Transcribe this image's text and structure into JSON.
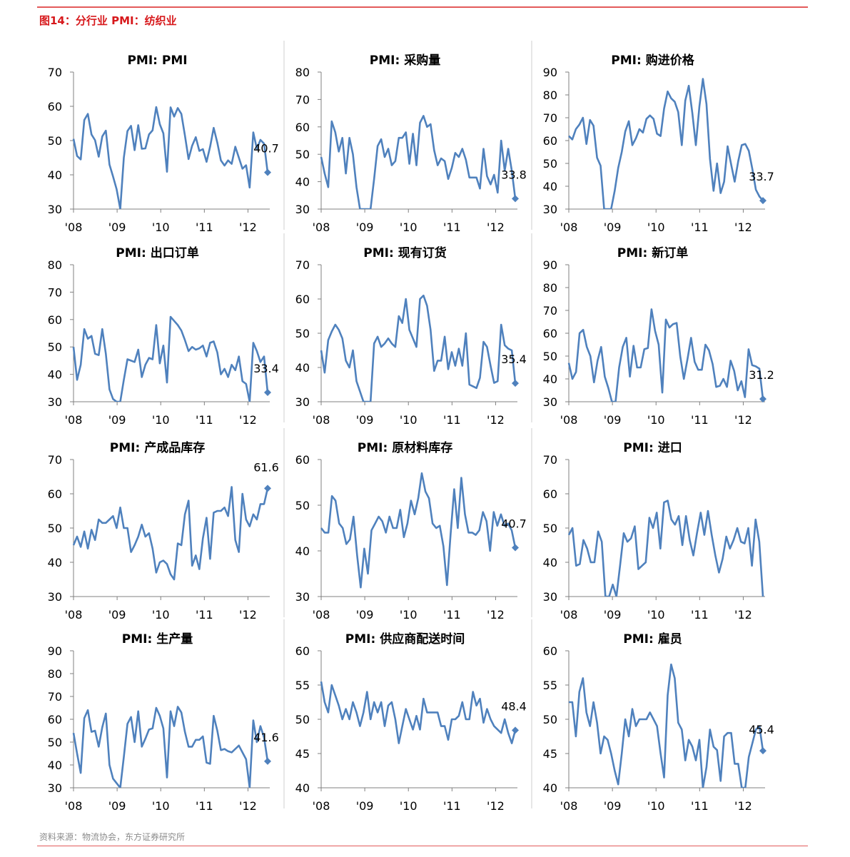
{
  "figure_title": "图14：分行业 PMI：纺织业",
  "source": "资料来源：物流协会，东方证券研究所",
  "colors": {
    "line": "#4f81bd",
    "title_red": "#d7191c",
    "rule": "#e35a5a",
    "divider": "#cfcfcf"
  },
  "chart_data": [
    {
      "type": "line",
      "title": "PMI: PMI",
      "ylim": [
        30,
        70
      ],
      "yticks": [
        30,
        40,
        50,
        60,
        70
      ],
      "x_start": 2008.0,
      "x_end": 2012.5,
      "x_tick_labels": [
        "'08",
        "'09",
        "'10",
        "'11",
        "'12"
      ],
      "series": [
        {
          "values": [
            50.5,
            45.5,
            44.5,
            56.0,
            57.8,
            51.8,
            50.1,
            45.3,
            51.2,
            52.9,
            43.0,
            39.5,
            35.8,
            28.5,
            45.0,
            52.8,
            54.3,
            47.2,
            54.5,
            47.6,
            47.7,
            51.8,
            53.0,
            59.8,
            54.8,
            52.1,
            40.9,
            59.7,
            57.0,
            59.5,
            57.8,
            51.5,
            44.6,
            48.5,
            51.0,
            47.0,
            47.5,
            43.8,
            48.2,
            53.7,
            49.4,
            44.2,
            42.7,
            44.2,
            43.2,
            48.2,
            45.0,
            41.8,
            42.8,
            36.3,
            52.4,
            47.6,
            50.2,
            49.1,
            40.7
          ]
        }
      ],
      "end_label": "40.7"
    },
    {
      "type": "line",
      "title": "PMI: 采购量",
      "ylim": [
        30,
        80
      ],
      "yticks": [
        30,
        40,
        50,
        60,
        70,
        80
      ],
      "x_start": 2008.0,
      "x_end": 2012.5,
      "x_tick_labels": [
        "'08",
        "'09",
        "'10",
        "'11",
        "'12"
      ],
      "series": [
        {
          "values": [
            49.0,
            43.0,
            38.0,
            62.0,
            58.0,
            51.0,
            56.0,
            43.0,
            56.0,
            50.0,
            38.0,
            29.0,
            20.0,
            16.0,
            26.0,
            41.0,
            53.0,
            55.5,
            49.0,
            52.0,
            46.0,
            47.5,
            56.0,
            56.0,
            58.0,
            46.5,
            57.5,
            46.0,
            61.5,
            64.0,
            60.0,
            61.0,
            51.5,
            46.0,
            48.5,
            47.5,
            41.0,
            45.0,
            50.5,
            49.0,
            52.0,
            48.0,
            41.5,
            41.5,
            41.5,
            37.5,
            52.0,
            42.0,
            39.0,
            42.5,
            36.0,
            55.0,
            44.0,
            52.0,
            44.0,
            33.8
          ]
        }
      ],
      "end_label": "33.8"
    },
    {
      "type": "line",
      "title": "PMI: 购进价格",
      "ylim": [
        30,
        90
      ],
      "yticks": [
        30,
        40,
        50,
        60,
        70,
        80,
        90
      ],
      "x_start": 2008.0,
      "x_end": 2012.5,
      "x_tick_labels": [
        "'08",
        "'09",
        "'10",
        "'11",
        "'12"
      ],
      "series": [
        {
          "values": [
            62.0,
            60.5,
            65.0,
            67.0,
            70.0,
            58.5,
            69.0,
            66.5,
            52.5,
            49.0,
            29.0,
            26.0,
            30.0,
            38.0,
            48.0,
            55.0,
            64.0,
            68.5,
            58.0,
            61.0,
            65.0,
            63.5,
            69.5,
            71.0,
            69.5,
            63.0,
            62.0,
            74.0,
            81.5,
            78.5,
            77.0,
            72.5,
            58.0,
            77.5,
            84.0,
            72.0,
            58.0,
            75.0,
            87.0,
            76.0,
            52.0,
            38.0,
            50.0,
            37.0,
            42.0,
            57.5,
            49.5,
            42.0,
            51.0,
            58.0,
            58.5,
            55.5,
            47.5,
            38.5,
            35.5,
            33.7
          ]
        }
      ],
      "end_label": "33.7"
    },
    {
      "type": "line",
      "title": "PMI: 出口订单",
      "ylim": [
        30,
        80
      ],
      "yticks": [
        30,
        40,
        50,
        60,
        70,
        80
      ],
      "x_start": 2008.0,
      "x_end": 2012.5,
      "x_tick_labels": [
        "'08",
        "'09",
        "'10",
        "'11",
        "'12"
      ],
      "series": [
        {
          "values": [
            50.0,
            38.0,
            43.5,
            56.5,
            53.0,
            54.0,
            47.5,
            47.0,
            56.5,
            47.5,
            34.5,
            31.0,
            28.5,
            22.0,
            38.0,
            45.5,
            45.0,
            44.5,
            49.0,
            39.0,
            43.5,
            46.0,
            45.5,
            58.0,
            44.0,
            50.5,
            37.0,
            61.0,
            59.5,
            58.0,
            56.0,
            52.5,
            48.5,
            50.0,
            49.0,
            49.5,
            50.5,
            46.5,
            51.5,
            52.0,
            48.0,
            40.0,
            42.0,
            39.0,
            43.5,
            41.5,
            46.5,
            37.5,
            36.5,
            27.0,
            51.5,
            48.5,
            44.5,
            46.5,
            33.4
          ]
        }
      ],
      "end_label": "33.4"
    },
    {
      "type": "line",
      "title": "PMI: 现有订货",
      "ylim": [
        30,
        70
      ],
      "yticks": [
        30,
        40,
        50,
        60,
        70
      ],
      "x_start": 2008.0,
      "x_end": 2012.5,
      "x_tick_labels": [
        "'08",
        "'09",
        "'10",
        "'11",
        "'12"
      ],
      "series": [
        {
          "values": [
            45.0,
            38.5,
            48.0,
            50.5,
            52.5,
            51.0,
            48.5,
            42.0,
            40.0,
            45.0,
            36.0,
            33.0,
            28.0,
            19.0,
            27.0,
            47.0,
            49.0,
            46.0,
            47.0,
            48.5,
            47.0,
            46.0,
            55.0,
            53.0,
            60.0,
            51.0,
            48.5,
            46.0,
            60.0,
            61.0,
            58.0,
            51.0,
            39.0,
            42.0,
            42.0,
            49.0,
            39.5,
            44.5,
            40.5,
            45.5,
            40.5,
            50.0,
            35.0,
            34.5,
            34.0,
            37.0,
            47.5,
            46.0,
            40.5,
            35.5,
            36.0,
            52.5,
            46.5,
            45.5,
            45.0,
            35.4
          ]
        }
      ],
      "end_label": "35.4"
    },
    {
      "type": "line",
      "title": "PMI: 新订单",
      "ylim": [
        30,
        90
      ],
      "yticks": [
        30,
        40,
        50,
        60,
        70,
        80,
        90
      ],
      "x_start": 2008.0,
      "x_end": 2012.5,
      "x_tick_labels": [
        "'08",
        "'09",
        "'10",
        "'11",
        "'12"
      ],
      "series": [
        {
          "values": [
            47.0,
            40.0,
            43.0,
            60.0,
            61.5,
            54.0,
            50.0,
            38.5,
            48.0,
            54.0,
            41.0,
            36.0,
            27.0,
            21.0,
            45.0,
            54.0,
            58.0,
            41.0,
            54.5,
            45.0,
            45.0,
            53.0,
            53.5,
            70.5,
            61.0,
            55.0,
            34.0,
            66.0,
            62.5,
            64.0,
            64.5,
            50.0,
            40.0,
            48.5,
            58.0,
            47.5,
            44.0,
            44.0,
            55.0,
            52.5,
            46.5,
            36.5,
            37.0,
            40.0,
            36.5,
            48.0,
            43.5,
            35.0,
            39.0,
            32.0,
            53.0,
            46.0,
            45.5,
            44.5,
            31.2
          ]
        }
      ],
      "end_label": "31.2"
    },
    {
      "type": "line",
      "title": "PMI: 产成品库存",
      "ylim": [
        30,
        70
      ],
      "yticks": [
        30,
        40,
        50,
        60,
        70
      ],
      "x_start": 2008.0,
      "x_end": 2012.5,
      "x_tick_labels": [
        "'08",
        "'09",
        "'10",
        "'11",
        "'12"
      ],
      "series": [
        {
          "values": [
            45.0,
            47.5,
            44.5,
            49.0,
            44.0,
            49.5,
            46.5,
            52.5,
            51.5,
            51.5,
            52.5,
            53.5,
            50.0,
            56.0,
            50.0,
            50.0,
            43.0,
            45.0,
            47.5,
            51.0,
            47.5,
            48.5,
            44.0,
            37.0,
            40.0,
            40.5,
            39.5,
            36.5,
            35.0,
            45.5,
            45.0,
            54.0,
            58.0,
            39.0,
            42.0,
            38.0,
            47.0,
            53.0,
            41.0,
            54.5,
            55.0,
            55.0,
            56.0,
            53.5,
            62.0,
            46.5,
            43.0,
            60.0,
            52.5,
            50.5,
            54.0,
            52.5,
            57.0,
            57.0,
            61.6
          ]
        }
      ],
      "end_label": "61.6"
    },
    {
      "type": "line",
      "title": "PMI: 原材料库存",
      "ylim": [
        30,
        60
      ],
      "yticks": [
        30,
        40,
        50,
        60
      ],
      "x_start": 2008.0,
      "x_end": 2012.5,
      "x_tick_labels": [
        "'08",
        "'09",
        "'10",
        "'11",
        "'12"
      ],
      "series": [
        {
          "values": [
            45.0,
            44.0,
            44.0,
            52.0,
            51.0,
            46.0,
            45.0,
            41.5,
            42.5,
            47.5,
            39.0,
            32.0,
            40.5,
            35.0,
            44.5,
            46.0,
            47.5,
            46.5,
            44.0,
            47.5,
            45.0,
            45.0,
            49.0,
            43.0,
            46.0,
            51.0,
            48.0,
            51.5,
            57.0,
            53.0,
            51.5,
            46.0,
            45.0,
            45.5,
            41.0,
            32.5,
            43.5,
            53.5,
            45.0,
            56.0,
            48.0,
            44.0,
            44.0,
            43.5,
            44.5,
            48.5,
            46.5,
            40.0,
            48.5,
            45.5,
            48.0,
            45.5,
            46.0,
            44.5,
            40.7
          ]
        }
      ],
      "end_label": "40.7"
    },
    {
      "type": "line",
      "title": "PMI: 进口",
      "ylim": [
        30,
        70
      ],
      "yticks": [
        30,
        40,
        50,
        60,
        70
      ],
      "x_start": 2008.0,
      "x_end": 2012.5,
      "x_tick_labels": [
        "'08",
        "'09",
        "'10",
        "'11",
        "'12"
      ],
      "series": [
        {
          "values": [
            48.0,
            50.0,
            39.0,
            39.5,
            46.5,
            44.0,
            40.0,
            40.0,
            49.0,
            46.0,
            29.0,
            27.0,
            33.5,
            28.0,
            39.0,
            48.5,
            46.0,
            47.0,
            50.5,
            38.0,
            39.0,
            40.0,
            53.0,
            50.0,
            54.5,
            44.0,
            57.5,
            58.0,
            52.5,
            51.0,
            53.5,
            45.0,
            53.5,
            46.5,
            42.0,
            48.5,
            54.5,
            48.0,
            55.0,
            48.0,
            42.0,
            37.0,
            41.0,
            47.5,
            44.0,
            46.5,
            50.0,
            46.0,
            45.5,
            50.0,
            39.0,
            52.5,
            46.0,
            30.0
          ]
        }
      ],
      "end_label": ""
    },
    {
      "type": "line",
      "title": "PMI: 生产量",
      "ylim": [
        30,
        90
      ],
      "yticks": [
        30,
        40,
        50,
        60,
        70,
        80,
        90
      ],
      "x_start": 2008.0,
      "x_end": 2012.5,
      "x_tick_labels": [
        "'08",
        "'09",
        "'10",
        "'11",
        "'12"
      ],
      "series": [
        {
          "values": [
            54.0,
            45.0,
            36.5,
            60.5,
            64.0,
            54.5,
            55.0,
            48.0,
            56.5,
            62.5,
            40.0,
            34.0,
            32.0,
            23.0,
            43.5,
            58.0,
            61.0,
            50.0,
            63.5,
            48.0,
            51.5,
            55.5,
            56.0,
            65.0,
            61.5,
            56.0,
            34.5,
            63.5,
            57.0,
            65.5,
            63.0,
            54.5,
            48.0,
            48.0,
            51.0,
            51.0,
            52.5,
            41.0,
            40.5,
            61.5,
            55.0,
            46.5,
            47.0,
            46.0,
            45.5,
            47.0,
            48.5,
            45.5,
            42.5,
            24.0,
            59.5,
            50.0,
            57.0,
            52.0,
            41.6
          ]
        }
      ],
      "end_label": "41.6"
    },
    {
      "type": "line",
      "title": "PMI: 供应商配送时间",
      "ylim": [
        40,
        60
      ],
      "yticks": [
        40,
        45,
        50,
        55,
        60
      ],
      "x_start": 2008.0,
      "x_end": 2012.5,
      "x_tick_labels": [
        "'08",
        "'09",
        "'10",
        "'11",
        "'12"
      ],
      "series": [
        {
          "values": [
            55.5,
            52.5,
            51.0,
            55.0,
            53.5,
            52.0,
            50.0,
            51.5,
            50.0,
            52.5,
            51.0,
            49.0,
            51.0,
            54.0,
            50.0,
            52.5,
            51.0,
            52.5,
            49.0,
            52.0,
            52.5,
            50.0,
            46.5,
            49.0,
            51.5,
            50.0,
            48.5,
            50.5,
            48.5,
            53.0,
            51.0,
            51.0,
            51.0,
            51.0,
            49.0,
            49.0,
            47.0,
            50.0,
            50.0,
            50.5,
            52.5,
            50.0,
            50.0,
            54.0,
            52.0,
            53.0,
            49.5,
            51.5,
            50.0,
            49.0,
            48.5,
            48.0,
            50.0,
            48.0,
            46.5,
            48.4
          ]
        }
      ],
      "end_label": "48.4"
    },
    {
      "type": "line",
      "title": "PMI: 雇员",
      "ylim": [
        40,
        60
      ],
      "yticks": [
        40,
        45,
        50,
        55,
        60
      ],
      "x_start": 2008.0,
      "x_end": 2012.5,
      "x_tick_labels": [
        "'08",
        "'09",
        "'10",
        "'11",
        "'12"
      ],
      "series": [
        {
          "values": [
            52.5,
            52.5,
            47.5,
            54.0,
            56.0,
            51.0,
            49.0,
            52.5,
            49.5,
            45.0,
            47.5,
            47.0,
            45.0,
            42.5,
            40.5,
            45.0,
            50.0,
            47.5,
            51.5,
            49.0,
            50.0,
            50.0,
            50.0,
            51.0,
            50.0,
            49.0,
            45.0,
            41.5,
            53.5,
            58.0,
            56.0,
            49.5,
            48.5,
            44.0,
            47.0,
            46.0,
            44.0,
            47.0,
            38.5,
            43.0,
            48.5,
            46.0,
            45.5,
            41.0,
            47.5,
            48.0,
            48.0,
            43.5,
            43.5,
            40.0,
            39.5,
            44.5,
            46.5,
            48.5,
            49.0,
            45.4
          ]
        }
      ],
      "end_label": "45.4"
    }
  ]
}
